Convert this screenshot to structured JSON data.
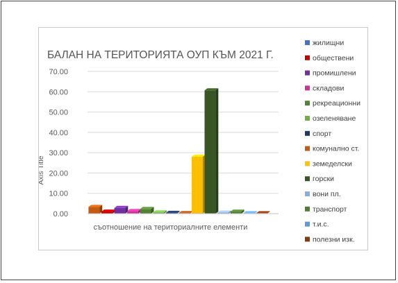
{
  "chart_data": {
    "type": "bar",
    "title": "БАЛАН НА ТЕРИТОРИЯТА ОУП КЪМ 2021 Г.",
    "xlabel": "съотношение на териториалните елементи",
    "ylabel": "Axis Title",
    "categories": [
      "съотношение на териториалните елементи"
    ],
    "ylim": [
      0,
      70
    ],
    "yticks": [
      "0.00",
      "10.00",
      "20.00",
      "30.00",
      "40.00",
      "50.00",
      "60.00",
      "70.00"
    ],
    "grid": true,
    "legend_position": "right",
    "series": [
      {
        "name": "жилищни",
        "values": [
          3.3
        ],
        "color": "#c55a11"
      },
      {
        "name": "обществени",
        "values": [
          1.0
        ],
        "color": "#c00000"
      },
      {
        "name": "промишлени",
        "values": [
          2.8
        ],
        "color": "#7030a0"
      },
      {
        "name": "складови",
        "values": [
          1.3
        ],
        "color": "#cc3399"
      },
      {
        "name": "рекреационни",
        "values": [
          2.3
        ],
        "color": "#548235"
      },
      {
        "name": "озеленяване",
        "values": [
          0.6
        ],
        "color": "#70ad47"
      },
      {
        "name": "спорт",
        "values": [
          0.4
        ],
        "color": "#1f3864"
      },
      {
        "name": "комунално ст.",
        "values": [
          0.3
        ],
        "color": "#a9531d"
      },
      {
        "name": "земеделски",
        "values": [
          28.0
        ],
        "color": "#ffc000"
      },
      {
        "name": "горски",
        "values": [
          60.7
        ],
        "color": "#375623"
      },
      {
        "name": "вони пл.",
        "values": [
          0.5
        ],
        "color": "#8eaadb"
      },
      {
        "name": "транспорт",
        "values": [
          1.0
        ],
        "color": "#507e32"
      },
      {
        "name": "т.и.с.",
        "values": [
          0.2
        ],
        "color": "#5b9bd5"
      },
      {
        "name": "полезни изк.",
        "values": [
          0.2
        ],
        "color": "#843c0c"
      }
    ],
    "legend_colors": [
      "#4472c4",
      "#c00000",
      "#7030a0",
      "#cc3399",
      "#548235",
      "#70ad47",
      "#1f3864",
      "#c55a11",
      "#ffc000",
      "#375623",
      "#8eaadb",
      "#507e32",
      "#5b9bd5",
      "#843c0c"
    ]
  }
}
